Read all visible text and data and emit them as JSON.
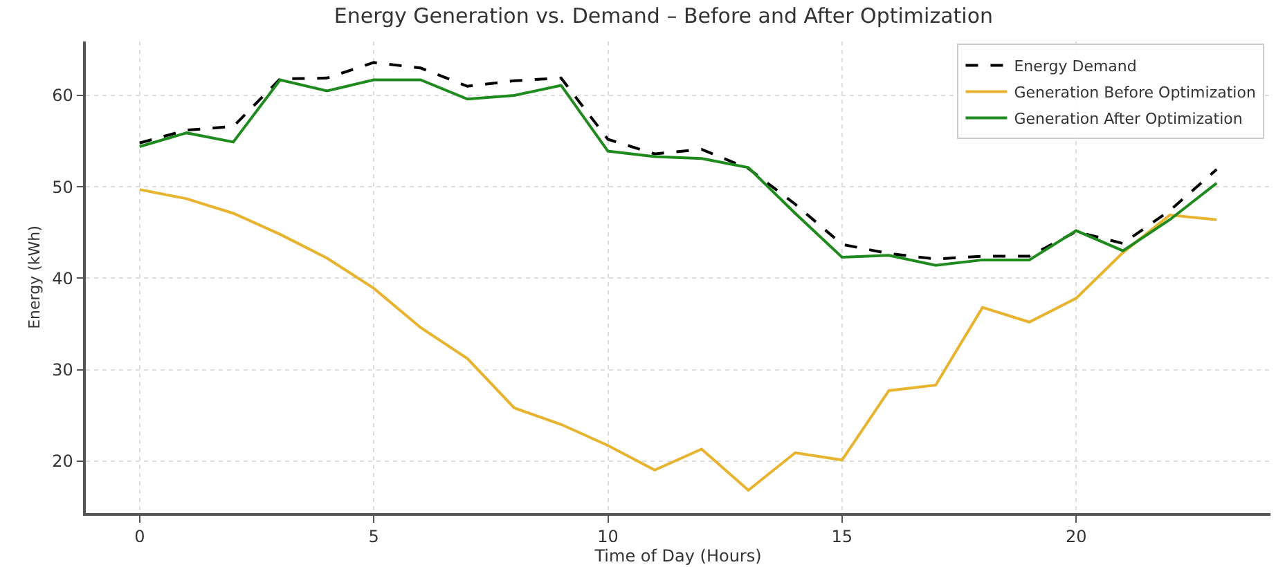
{
  "chart_data": {
    "type": "line",
    "title": "Energy Generation vs. Demand – Before and After Optimization",
    "xlabel": "Time of Day (Hours)",
    "ylabel": "Energy (kWh)",
    "x": [
      0,
      1,
      2,
      3,
      4,
      5,
      6,
      7,
      8,
      9,
      10,
      11,
      12,
      13,
      14,
      15,
      16,
      17,
      18,
      19,
      20,
      21,
      22,
      23
    ],
    "series": [
      {
        "name": "Energy Demand",
        "color": "#000000",
        "line_style": "dashed",
        "values": [
          54.8,
          56.2,
          56.6,
          61.8,
          61.9,
          63.6,
          63.0,
          61.0,
          61.6,
          61.9,
          55.2,
          53.6,
          54.1,
          52.0,
          48.1,
          43.7,
          42.7,
          42.1,
          42.4,
          42.4,
          45.1,
          43.8,
          47.4,
          51.9
        ]
      },
      {
        "name": "Generation Before Optimization",
        "color": "#e8b430",
        "line_style": "solid",
        "values": [
          49.7,
          48.7,
          47.1,
          44.8,
          42.2,
          38.9,
          34.6,
          31.2,
          25.8,
          24.0,
          21.7,
          19.0,
          21.3,
          16.8,
          20.9,
          20.1,
          27.7,
          28.3,
          36.8,
          35.2,
          37.8,
          42.8,
          46.9,
          46.4
        ]
      },
      {
        "name": "Generation After Optimization",
        "color": "#1f8b1f",
        "line_style": "solid",
        "values": [
          54.4,
          55.9,
          54.9,
          61.7,
          60.5,
          61.7,
          61.7,
          59.6,
          60.0,
          61.1,
          53.9,
          53.3,
          53.1,
          52.1,
          47.1,
          42.3,
          42.5,
          41.4,
          42.0,
          42.0,
          45.2,
          43.0,
          46.4,
          50.4
        ]
      }
    ],
    "xlim": [
      -1.15,
      24.15
    ],
    "ylim": [
      14.3,
      65.9
    ],
    "xticks": [
      0,
      5,
      10,
      15,
      20
    ],
    "yticks": [
      20,
      30,
      40,
      50,
      60
    ],
    "grid": true,
    "legend": "top right",
    "marker": "none"
  }
}
